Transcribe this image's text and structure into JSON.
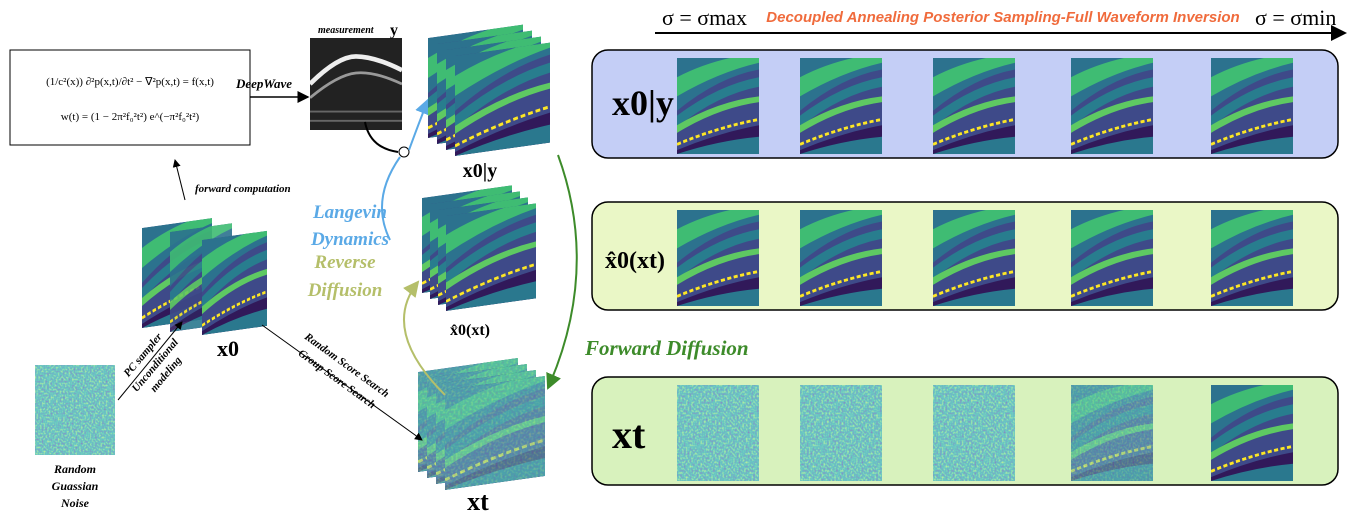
{
  "forward_model": {
    "equation": "(1/c²(x)) ∂²p(x,t)/∂t² − ∇²p(x,t) = f(x,t)",
    "wavelet": "w(t) = (1 − 2π²f₀²t²) e^(−π²f₀²t²)",
    "solver": "DeepWave",
    "computation": "forward computation"
  },
  "measurement": {
    "label": "measurement",
    "symbol": "y"
  },
  "stacks": {
    "posterior": "x0|y",
    "denoised": "x̂0(xt)",
    "clean": "x0",
    "noisy": "xt"
  },
  "noise": {
    "lines": [
      "Random",
      "Guassian",
      "Noise"
    ]
  },
  "sampler": {
    "top": "PC sampler",
    "bottom": "Unconditional",
    "bottom2": "modeling"
  },
  "search": {
    "random": "Random Score Search",
    "group": "Group Score Search"
  },
  "arrows": {
    "langevin": [
      "Langevin",
      "Dynamics"
    ],
    "reverse": [
      "Reverse",
      "Diffusion"
    ],
    "forward": "Forward Diffusion"
  },
  "header": {
    "start": "σ = σmax",
    "title": "Decoupled Annealing Posterior Sampling-Full Waveform Inversion",
    "end": "σ = σmin"
  },
  "rows": [
    "x0|y",
    "x̂0(xt)",
    "xt"
  ]
}
